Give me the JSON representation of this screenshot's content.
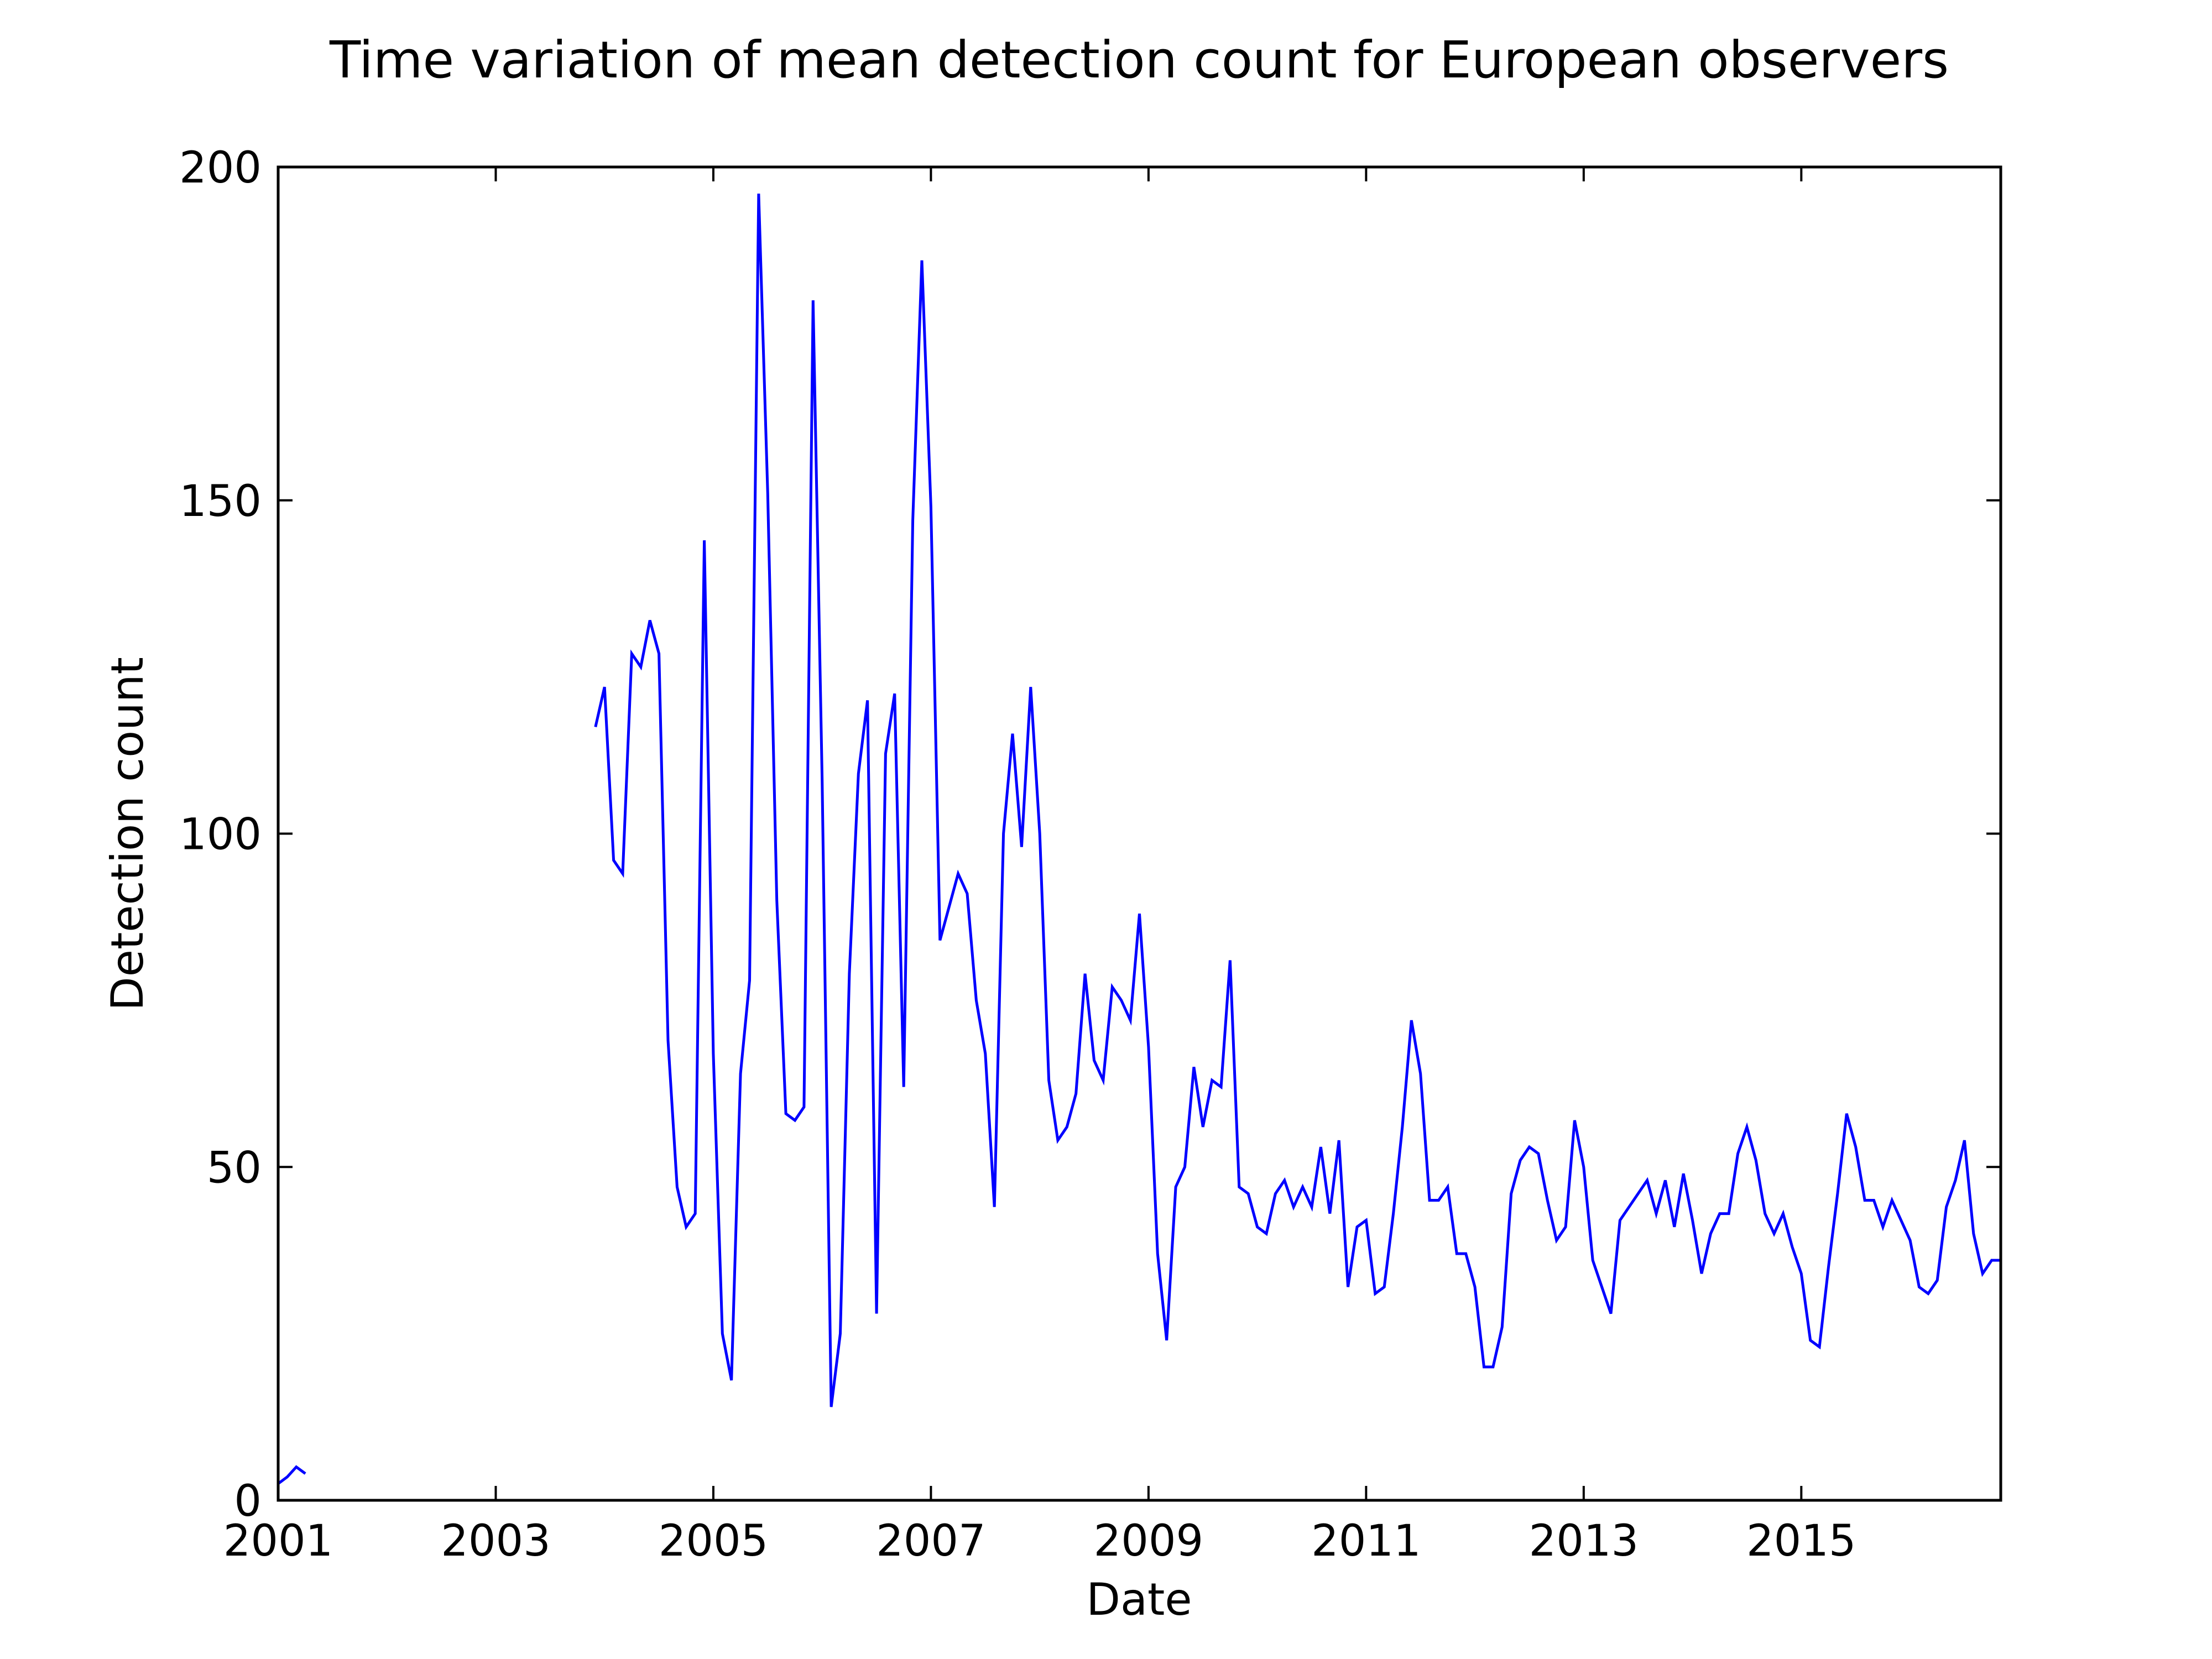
{
  "chart_data": {
    "type": "line",
    "title": "Time variation of mean detection count for European observers",
    "xlabel": "Date",
    "ylabel": "Detection count",
    "xlim": [
      "2001-01-01",
      "2016-11-01"
    ],
    "ylim": [
      0,
      200
    ],
    "x_ticks": [
      "2001",
      "2003",
      "2005",
      "2007",
      "2009",
      "2011",
      "2013",
      "2015"
    ],
    "y_ticks": [
      0,
      50,
      100,
      150,
      200
    ],
    "grid": false,
    "legend": "none",
    "series": [
      {
        "color": "#0000ff",
        "segments": [
          [
            [
              "2001-01",
              2.5
            ],
            [
              "2001-02",
              3.5
            ],
            [
              "2001-03",
              5.0
            ],
            [
              "2001-04",
              4.0
            ]
          ],
          [
            [
              "2003-12",
              116
            ],
            [
              "2004-01",
              122
            ],
            [
              "2004-02",
              96
            ],
            [
              "2004-03",
              94
            ],
            [
              "2004-04",
              127
            ],
            [
              "2004-05",
              125
            ],
            [
              "2004-06",
              132
            ],
            [
              "2004-07",
              127
            ],
            [
              "2004-08",
              69
            ],
            [
              "2004-09",
              47
            ],
            [
              "2004-10",
              41
            ],
            [
              "2004-11",
              43
            ],
            [
              "2004-12",
              144
            ],
            [
              "2005-01",
              67
            ],
            [
              "2005-02",
              25
            ],
            [
              "2005-03",
              18
            ],
            [
              "2005-04",
              64
            ],
            [
              "2005-05",
              78
            ],
            [
              "2005-06",
              196
            ],
            [
              "2005-07",
              151
            ],
            [
              "2005-08",
              90
            ],
            [
              "2005-09",
              58
            ],
            [
              "2005-10",
              57
            ],
            [
              "2005-11",
              59
            ],
            [
              "2005-12",
              180
            ],
            [
              "2006-01",
              108
            ],
            [
              "2006-02",
              14
            ],
            [
              "2006-03",
              25
            ],
            [
              "2006-04",
              79
            ],
            [
              "2006-05",
              109
            ],
            [
              "2006-06",
              120
            ],
            [
              "2006-07",
              28
            ],
            [
              "2006-08",
              112
            ],
            [
              "2006-09",
              121
            ],
            [
              "2006-10",
              62
            ],
            [
              "2006-11",
              147
            ],
            [
              "2006-12",
              186
            ],
            [
              "2007-01",
              149
            ],
            [
              "2007-02",
              84
            ],
            [
              "2007-03",
              89
            ],
            [
              "2007-04",
              94
            ],
            [
              "2007-05",
              91
            ],
            [
              "2007-06",
              75
            ],
            [
              "2007-07",
              67
            ],
            [
              "2007-08",
              44
            ],
            [
              "2007-09",
              100
            ],
            [
              "2007-10",
              115
            ],
            [
              "2007-11",
              98
            ],
            [
              "2007-12",
              122
            ],
            [
              "2008-01",
              100
            ],
            [
              "2008-02",
              63
            ],
            [
              "2008-03",
              54
            ],
            [
              "2008-04",
              56
            ],
            [
              "2008-05",
              61
            ],
            [
              "2008-06",
              79
            ],
            [
              "2008-07",
              66
            ],
            [
              "2008-08",
              63
            ],
            [
              "2008-09",
              77
            ],
            [
              "2008-10",
              75
            ],
            [
              "2008-11",
              72
            ],
            [
              "2008-12",
              88
            ],
            [
              "2009-01",
              68
            ],
            [
              "2009-02",
              37
            ],
            [
              "2009-03",
              24
            ],
            [
              "2009-04",
              47
            ],
            [
              "2009-05",
              50
            ],
            [
              "2009-06",
              65
            ],
            [
              "2009-07",
              56
            ],
            [
              "2009-08",
              63
            ],
            [
              "2009-09",
              62
            ],
            [
              "2009-10",
              81
            ],
            [
              "2009-11",
              47
            ],
            [
              "2009-12",
              46
            ],
            [
              "2010-01",
              41
            ],
            [
              "2010-02",
              40
            ],
            [
              "2010-03",
              46
            ],
            [
              "2010-04",
              48
            ],
            [
              "2010-05",
              44
            ],
            [
              "2010-06",
              47
            ],
            [
              "2010-07",
              44
            ],
            [
              "2010-08",
              53
            ],
            [
              "2010-09",
              43
            ],
            [
              "2010-10",
              54
            ],
            [
              "2010-11",
              32
            ],
            [
              "2010-12",
              41
            ],
            [
              "2011-01",
              42
            ],
            [
              "2011-02",
              31
            ],
            [
              "2011-03",
              32
            ],
            [
              "2011-04",
              43
            ],
            [
              "2011-05",
              56
            ],
            [
              "2011-06",
              72
            ],
            [
              "2011-07",
              64
            ],
            [
              "2011-08",
              45
            ],
            [
              "2011-09",
              45
            ],
            [
              "2011-10",
              47
            ],
            [
              "2011-11",
              37
            ],
            [
              "2011-12",
              37
            ],
            [
              "2012-01",
              32
            ],
            [
              "2012-02",
              20
            ],
            [
              "2012-03",
              20
            ],
            [
              "2012-04",
              26
            ],
            [
              "2012-05",
              46
            ],
            [
              "2012-06",
              51
            ],
            [
              "2012-07",
              53
            ],
            [
              "2012-08",
              52
            ],
            [
              "2012-09",
              45
            ],
            [
              "2012-10",
              39
            ],
            [
              "2012-11",
              41
            ],
            [
              "2012-12",
              57
            ],
            [
              "2013-01",
              50
            ],
            [
              "2013-02",
              36
            ],
            [
              "2013-03",
              32
            ],
            [
              "2013-04",
              28
            ],
            [
              "2013-05",
              42
            ],
            [
              "2013-06",
              44
            ],
            [
              "2013-07",
              46
            ],
            [
              "2013-08",
              48
            ],
            [
              "2013-09",
              43
            ],
            [
              "2013-10",
              48
            ],
            [
              "2013-11",
              41
            ],
            [
              "2013-12",
              49
            ],
            [
              "2014-01",
              42
            ],
            [
              "2014-02",
              34
            ],
            [
              "2014-03",
              40
            ],
            [
              "2014-04",
              43
            ],
            [
              "2014-05",
              43
            ],
            [
              "2014-06",
              52
            ],
            [
              "2014-07",
              56
            ],
            [
              "2014-08",
              51
            ],
            [
              "2014-09",
              43
            ],
            [
              "2014-10",
              40
            ],
            [
              "2014-11",
              43
            ],
            [
              "2014-12",
              38
            ],
            [
              "2015-01",
              34
            ],
            [
              "2015-02",
              24
            ],
            [
              "2015-03",
              23
            ],
            [
              "2015-04",
              35
            ],
            [
              "2015-05",
              46
            ],
            [
              "2015-06",
              58
            ],
            [
              "2015-07",
              53
            ],
            [
              "2015-08",
              45
            ],
            [
              "2015-09",
              45
            ],
            [
              "2015-10",
              41
            ],
            [
              "2015-11",
              45
            ],
            [
              "2015-12",
              42
            ],
            [
              "2016-01",
              39
            ],
            [
              "2016-02",
              32
            ],
            [
              "2016-03",
              31
            ],
            [
              "2016-04",
              33
            ],
            [
              "2016-05",
              44
            ],
            [
              "2016-06",
              48
            ],
            [
              "2016-07",
              54
            ],
            [
              "2016-08",
              40
            ],
            [
              "2016-09",
              34
            ],
            [
              "2016-10",
              36
            ],
            [
              "2016-11",
              36
            ]
          ]
        ]
      }
    ]
  }
}
